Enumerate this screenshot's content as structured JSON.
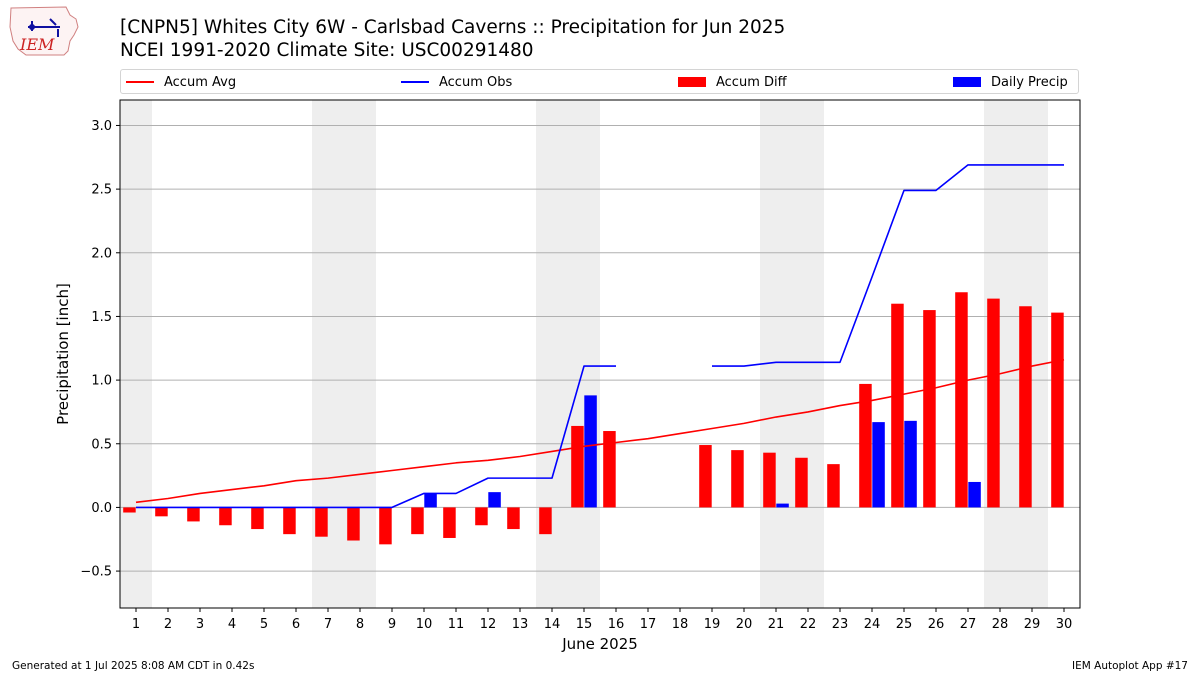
{
  "logo": {
    "text": "IEM"
  },
  "header": {
    "title_line1": "[CNPN5] Whites City 6W - Carlsbad Caverns :: Precipitation for Jun 2025",
    "title_line2": "NCEI 1991-2020 Climate Site: USC00291480"
  },
  "legend": {
    "accum_avg": "Accum Avg",
    "accum_obs": "Accum Obs",
    "accum_diff": "Accum Diff",
    "daily_precip": "Daily Precip"
  },
  "footer": {
    "left": "Generated at 1 Jul 2025 8:08 AM CDT in 0.42s",
    "right": "IEM Autoplot App #17"
  },
  "colors": {
    "accum_avg": "#ff0000",
    "accum_obs": "#0000ff",
    "accum_diff": "#ff0000",
    "daily_precip": "#0000ff",
    "weekend_shade": "#eeeeee",
    "grid": "#b0b0b0"
  },
  "chart_data": {
    "type": "bar",
    "xlabel": "June 2025",
    "ylabel": "Precipitation [inch]",
    "ylim": [
      -0.79,
      3.2
    ],
    "yticks": [
      -0.5,
      0.0,
      0.5,
      1.0,
      1.5,
      2.0,
      2.5,
      3.0
    ],
    "ytick_labels": [
      "−0.5",
      "0.0",
      "0.5",
      "1.0",
      "1.5",
      "2.0",
      "2.5",
      "3.0"
    ],
    "x": [
      1,
      2,
      3,
      4,
      5,
      6,
      7,
      8,
      9,
      10,
      11,
      12,
      13,
      14,
      15,
      16,
      17,
      18,
      19,
      20,
      21,
      22,
      23,
      24,
      25,
      26,
      27,
      28,
      29,
      30
    ],
    "grid": "horizontal",
    "shaded_weekends": [
      [
        1,
        1
      ],
      [
        7,
        8
      ],
      [
        14,
        15
      ],
      [
        21,
        22
      ],
      [
        28,
        29
      ]
    ],
    "series": [
      {
        "name": "Accum Avg",
        "kind": "line",
        "values": [
          0.04,
          0.07,
          0.11,
          0.14,
          0.17,
          0.21,
          0.23,
          0.26,
          0.29,
          0.32,
          0.35,
          0.37,
          0.4,
          0.44,
          0.48,
          0.51,
          0.54,
          0.58,
          0.62,
          0.66,
          0.71,
          0.75,
          0.8,
          0.84,
          0.89,
          0.94,
          1.0,
          1.05,
          1.11,
          1.16
        ]
      },
      {
        "name": "Accum Obs",
        "kind": "line",
        "values": [
          0.0,
          0.0,
          0.0,
          0.0,
          0.0,
          0.0,
          0.0,
          0.0,
          0.0,
          0.11,
          0.11,
          0.23,
          0.23,
          0.23,
          1.11,
          1.11,
          null,
          null,
          1.11,
          1.11,
          1.14,
          1.14,
          1.14,
          1.81,
          2.49,
          2.49,
          2.69,
          2.69,
          2.69,
          2.69
        ]
      },
      {
        "name": "Accum Diff",
        "kind": "bar",
        "values": [
          -0.04,
          -0.07,
          -0.11,
          -0.14,
          -0.17,
          -0.21,
          -0.23,
          -0.26,
          -0.29,
          -0.21,
          -0.24,
          -0.14,
          -0.17,
          -0.21,
          0.64,
          0.6,
          null,
          null,
          0.49,
          0.45,
          0.43,
          0.39,
          0.34,
          0.97,
          1.6,
          1.55,
          1.69,
          1.64,
          1.58,
          1.53
        ]
      },
      {
        "name": "Daily Precip",
        "kind": "bar",
        "values": [
          0,
          0,
          0,
          0,
          0,
          0,
          0,
          0,
          0,
          0.11,
          0,
          0.12,
          0,
          0,
          0.88,
          0,
          null,
          null,
          0,
          0,
          0.03,
          0,
          0,
          0.67,
          0.68,
          0,
          0.2,
          0,
          0,
          0
        ]
      }
    ]
  }
}
